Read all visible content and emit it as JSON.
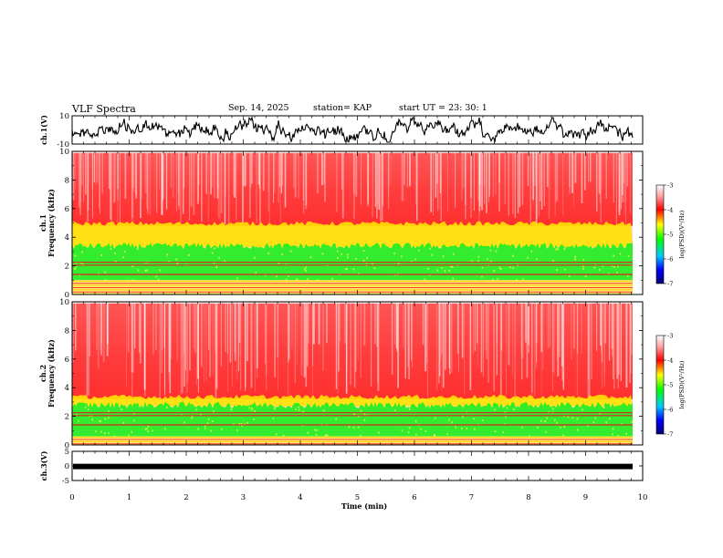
{
  "header": {
    "title": "VLF Spectra",
    "date": "Sep. 14, 2025",
    "station": "station= KAP",
    "start_ut": "start  UT  =   23: 30: 1"
  },
  "chart_data": [
    {
      "type": "line",
      "name": "ch1-waveform",
      "ylabel": "ch.1(V)",
      "ylim": [
        -10,
        10
      ],
      "yticks": [
        "10",
        "-10"
      ],
      "xlim": [
        0,
        9.85
      ]
    },
    {
      "type": "heatmap",
      "name": "ch1-spectrogram",
      "ylabel": "ch.1\nFrequency (kHz)",
      "ylabel_lines": [
        "ch.1",
        "Frequency  (kHz)"
      ],
      "ylim": [
        0,
        10
      ],
      "yticks": [
        "0",
        "2",
        "4",
        "6",
        "8",
        "10"
      ],
      "green_band_khz": [
        1.0,
        3.3
      ],
      "yellow_band_khz": [
        3.3,
        4.8
      ],
      "colorbar": {
        "label": "log(PSD)(V²/Hz)",
        "ticks": [
          "-3",
          "-4",
          "-5",
          "-6",
          "-7"
        ],
        "range": [
          -7,
          -3
        ]
      }
    },
    {
      "type": "heatmap",
      "name": "ch2-spectrogram",
      "ylabel": "ch.2\nFrequency (kHz)",
      "ylabel_lines": [
        "ch.2",
        "Frequency  (kHz)"
      ],
      "ylim": [
        0,
        10
      ],
      "yticks": [
        "0",
        "2",
        "4",
        "6",
        "8",
        "10"
      ],
      "green_band_khz": [
        0.6,
        2.7
      ],
      "yellow_band_khz": [
        2.7,
        3.2
      ],
      "colorbar": {
        "label": "log(PSD)(V²/Hz)",
        "ticks": [
          "-3",
          "-4",
          "-5",
          "-6",
          "-7"
        ],
        "range": [
          -7,
          -3
        ]
      }
    },
    {
      "type": "line",
      "name": "ch3-waveform",
      "ylabel": "ch.3(V)",
      "ylim": [
        -5,
        5
      ],
      "yticks": [
        "5",
        "0",
        "-5"
      ],
      "xlim": [
        0,
        9.85
      ]
    }
  ],
  "x_axis": {
    "label": "Time  (min)",
    "range": [
      0,
      10
    ],
    "ticks": [
      "0",
      "1",
      "2",
      "3",
      "4",
      "5",
      "6",
      "7",
      "8",
      "9",
      "10"
    ]
  },
  "colors": {
    "spectrum_high": "#ff0000",
    "spectrum_mid": "#ffff00",
    "spectrum_low": "#00ff00",
    "trace": "#000000"
  }
}
